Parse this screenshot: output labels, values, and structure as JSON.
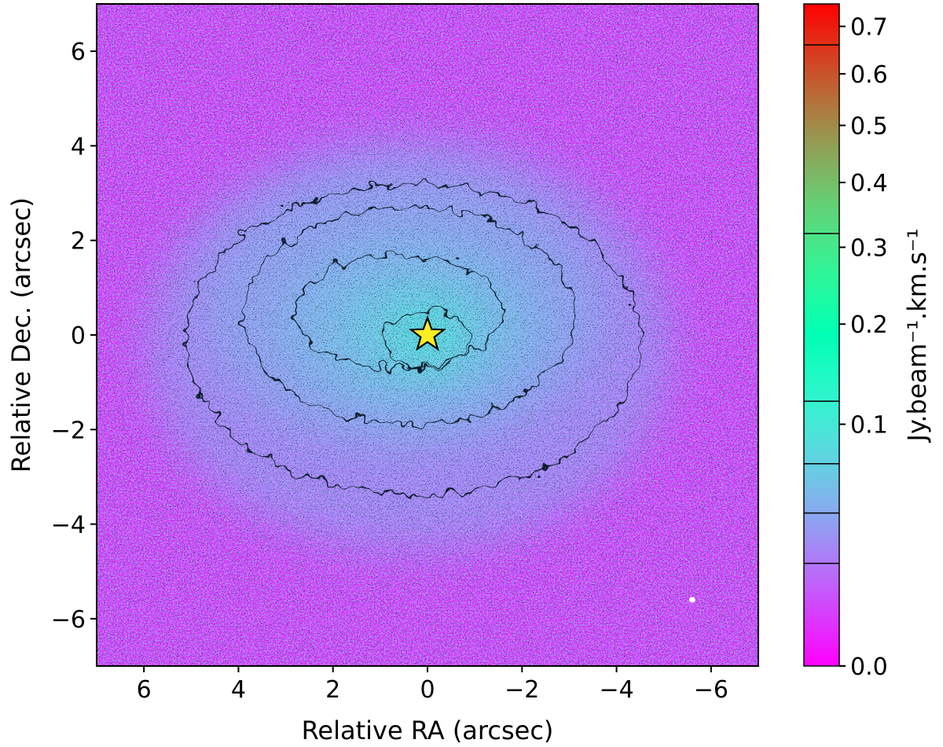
{
  "chart_data": {
    "type": "heatmap",
    "xlabel": "Relative RA (arcsec)",
    "ylabel": "Relative Dec. (arcsec)",
    "xlim": [
      7,
      -7
    ],
    "ylim": [
      -7,
      7
    ],
    "x_ticks": [
      6,
      4,
      2,
      0,
      -2,
      -4,
      -6
    ],
    "y_ticks": [
      6,
      4,
      2,
      0,
      -2,
      -4,
      -6
    ],
    "x_tick_labels": [
      "6",
      "4",
      "2",
      "0",
      "−2",
      "−4",
      "−6"
    ],
    "y_tick_labels": [
      "6",
      "4",
      "2",
      "0",
      "−2",
      "−4",
      "−6"
    ],
    "colormap": "rainbow",
    "colorbar": {
      "label": "Jy.beam⁻¹.km.s⁻¹",
      "range": [
        0.0,
        0.75
      ],
      "scale": "sqrt",
      "ticks": [
        0.0,
        0.1,
        0.2,
        0.3,
        0.4,
        0.5,
        0.6,
        0.7
      ],
      "tick_labels": [
        "0.0",
        "0.1",
        "0.2",
        "0.3",
        "0.4",
        "0.5",
        "0.6",
        "0.7"
      ],
      "contour_levels": [
        0.018,
        0.04,
        0.07,
        0.12,
        0.32,
        0.66
      ]
    },
    "star_marker": {
      "x": 0.0,
      "y": 0.0,
      "color": "#ffee22"
    },
    "beam_marker": {
      "x": -5.6,
      "y": -5.6,
      "color": "#ffffff"
    },
    "emission_peak": 0.11,
    "grid": false
  }
}
